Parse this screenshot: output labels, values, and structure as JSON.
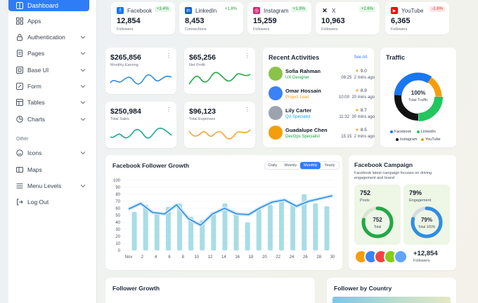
{
  "sidebar": {
    "active": "Dashboard",
    "items": [
      {
        "label": "Apps",
        "chevron": false
      },
      {
        "label": "Authentication",
        "chevron": true
      },
      {
        "label": "Pages",
        "chevron": true
      },
      {
        "label": "Base UI",
        "chevron": true
      },
      {
        "label": "Form",
        "chevron": true
      },
      {
        "label": "Tables",
        "chevron": true
      },
      {
        "label": "Charts",
        "chevron": true
      }
    ],
    "section_other": "Other",
    "other_items": [
      {
        "label": "Icons",
        "chevron": true
      },
      {
        "label": "Maps",
        "chevron": false
      },
      {
        "label": "Menu Levels",
        "chevron": true
      },
      {
        "label": "Log Out",
        "chevron": false
      }
    ]
  },
  "social": [
    {
      "name": "Facebook",
      "badge": "+3.4%",
      "trend": "up",
      "value": "12,854",
      "label": "Followers",
      "color": "#1877f2"
    },
    {
      "name": "LinkedIn",
      "badge": "+1.8%",
      "trend": "up",
      "value": "8,453",
      "label": "Connections",
      "color": "#0a66c2"
    },
    {
      "name": "Instagram",
      "badge": "+1.9%",
      "trend": "up",
      "value": "15,259",
      "label": "Followers",
      "color": "#d62976"
    },
    {
      "name": "X",
      "badge": "+2.6%",
      "trend": "up",
      "value": "10,963",
      "label": "Followers",
      "color": "#111111"
    },
    {
      "name": "YouTube",
      "badge": "-1.6%",
      "trend": "down",
      "value": "6,365",
      "label": "Followers",
      "color": "#ff0000"
    }
  ],
  "kpis": [
    {
      "value": "$265,856",
      "label": "Monthly Earning",
      "color": "#2f8ee0"
    },
    {
      "value": "$65,256",
      "label": "Net Profit",
      "color": "#22a847"
    },
    {
      "value": "$250,984",
      "label": "Total Sales",
      "color": "#1ea88f"
    },
    {
      "value": "$96,123",
      "label": "Total Expenses",
      "color": "#f1a533"
    }
  ],
  "activities": {
    "title": "Recent Activities",
    "see_all": "See All",
    "rows": [
      {
        "name": "Sofia Rahman",
        "role": "UX Designer",
        "role_color": "#16a34a",
        "rating": "9.0",
        "time": "08:25",
        "ago": "2 mins ago",
        "avatar": "#8bc34a"
      },
      {
        "name": "Omar Hossain",
        "role": "Project Lead",
        "role_color": "#f59e0b",
        "rating": "8.9",
        "time": "10:00",
        "ago": "20 mins ago",
        "avatar": "#3b82f6"
      },
      {
        "name": "Lily Carter",
        "role": "QA Specialist",
        "role_color": "#0ea5e9",
        "rating": "8.7",
        "time": "11:32",
        "ago": "30 mins ago",
        "avatar": "#9ca3af"
      },
      {
        "name": "Guadalupe Chen",
        "role": "DevOps Specialist",
        "role_color": "#16a34a",
        "rating": "8.5",
        "time": "15:15",
        "ago": "2 mins ago",
        "avatar": "#f59e0b"
      }
    ]
  },
  "traffic": {
    "title": "Traffic",
    "center_value": "100%",
    "center_label": "Total Traffic",
    "legend": [
      {
        "name": "Facebook",
        "color": "#1877f2"
      },
      {
        "name": "LinkedIn",
        "color": "#22c55e"
      },
      {
        "name": "Instagram",
        "color": "#111111"
      },
      {
        "name": "YouTube",
        "color": "#f59e0b"
      }
    ]
  },
  "follower_growth": {
    "title": "Facebook Follower Growth",
    "tabs": [
      "Daily",
      "Weekly",
      "Monthly",
      "Yearly"
    ],
    "active_tab": "Monthly"
  },
  "chart_data": {
    "type": "bar",
    "title": "Facebook Follower Growth",
    "x_labels": [
      "Nov",
      "2",
      "4",
      "6",
      "8",
      "10",
      "12",
      "14",
      "16",
      "18",
      "20",
      "22",
      "24",
      "26",
      "28",
      "30"
    ],
    "y_ticks": [
      0,
      10,
      20,
      30,
      40,
      50,
      60,
      70,
      80,
      90,
      100
    ],
    "ylim": [
      0,
      100
    ],
    "bar_values": [
      55,
      65,
      55,
      62,
      67,
      48,
      43,
      55,
      67,
      55,
      40,
      60,
      65,
      70,
      66,
      80,
      67,
      63
    ],
    "line_values": [
      59,
      67,
      54,
      52,
      65,
      45,
      36,
      52,
      60,
      52,
      51,
      61,
      69,
      72,
      63,
      70,
      74,
      78
    ]
  },
  "campaign": {
    "title": "Facebook Campaign",
    "desc": "Facebook latest campaign focuses on driving engagement and brand",
    "posts_value": "752",
    "posts_label": "Posts",
    "posts_ring_value": "752",
    "posts_ring_label": "Total",
    "posts_pct": 78,
    "engagement_value": "79%",
    "engagement_label": "Engagement",
    "engagement_ring_value": "79%",
    "engagement_ring_label": "Total 100%",
    "engagement_pct": 79,
    "followers_value": "+12,854",
    "followers_label": "Followers"
  },
  "bottom": {
    "growth_title": "Follower Growth",
    "country_title": "Follower by Country"
  }
}
